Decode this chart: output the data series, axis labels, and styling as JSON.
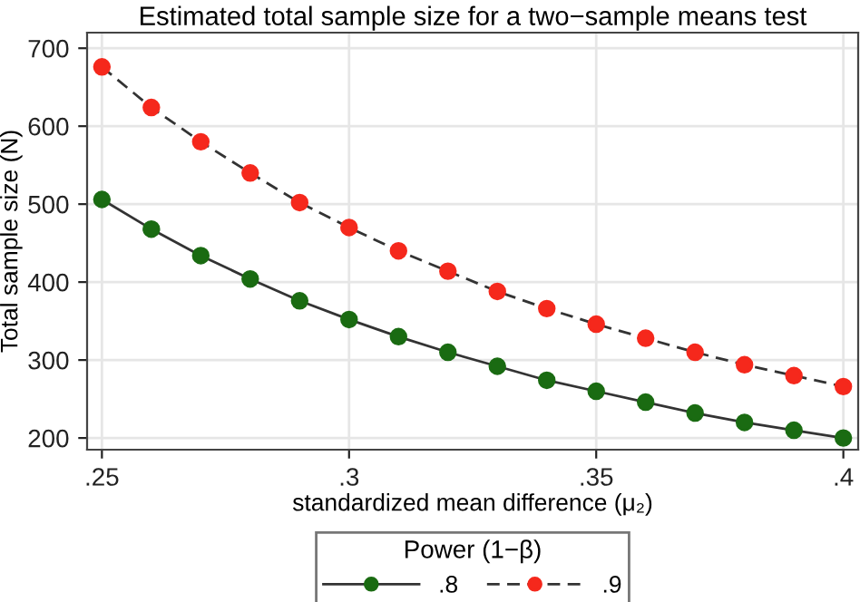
{
  "chart_data": {
    "type": "line",
    "title": "Estimated total sample size for a two−sample means test",
    "xlabel": "standardized mean difference (μ₂)",
    "ylabel": "Total sample size (N)",
    "legend_title": "Power (1−β)",
    "x": [
      0.25,
      0.26,
      0.27,
      0.28,
      0.29,
      0.3,
      0.31,
      0.32,
      0.33,
      0.34,
      0.35,
      0.36,
      0.37,
      0.38,
      0.39,
      0.4
    ],
    "series": [
      {
        "name": ".8",
        "color": "#1a6b12",
        "line_style": "solid",
        "values": [
          506,
          468,
          434,
          404,
          376,
          352,
          330,
          310,
          292,
          274,
          260,
          246,
          232,
          220,
          210,
          200
        ]
      },
      {
        "name": ".9",
        "color": "#f5281c",
        "line_style": "dashed",
        "values": [
          676,
          624,
          580,
          540,
          502,
          470,
          440,
          414,
          388,
          366,
          346,
          328,
          310,
          294,
          280,
          266
        ]
      }
    ],
    "marker": "circle",
    "xlim": [
      0.247,
      0.403
    ],
    "ylim": [
      185,
      720
    ],
    "xticks": [
      {
        "value": 0.25,
        "label": ".25"
      },
      {
        "value": 0.3,
        "label": ".3"
      },
      {
        "value": 0.35,
        "label": ".35"
      },
      {
        "value": 0.4,
        "label": ".4"
      }
    ],
    "yticks": [
      200,
      300,
      400,
      500,
      600,
      700
    ],
    "grid": true,
    "legend": "bottom"
  }
}
